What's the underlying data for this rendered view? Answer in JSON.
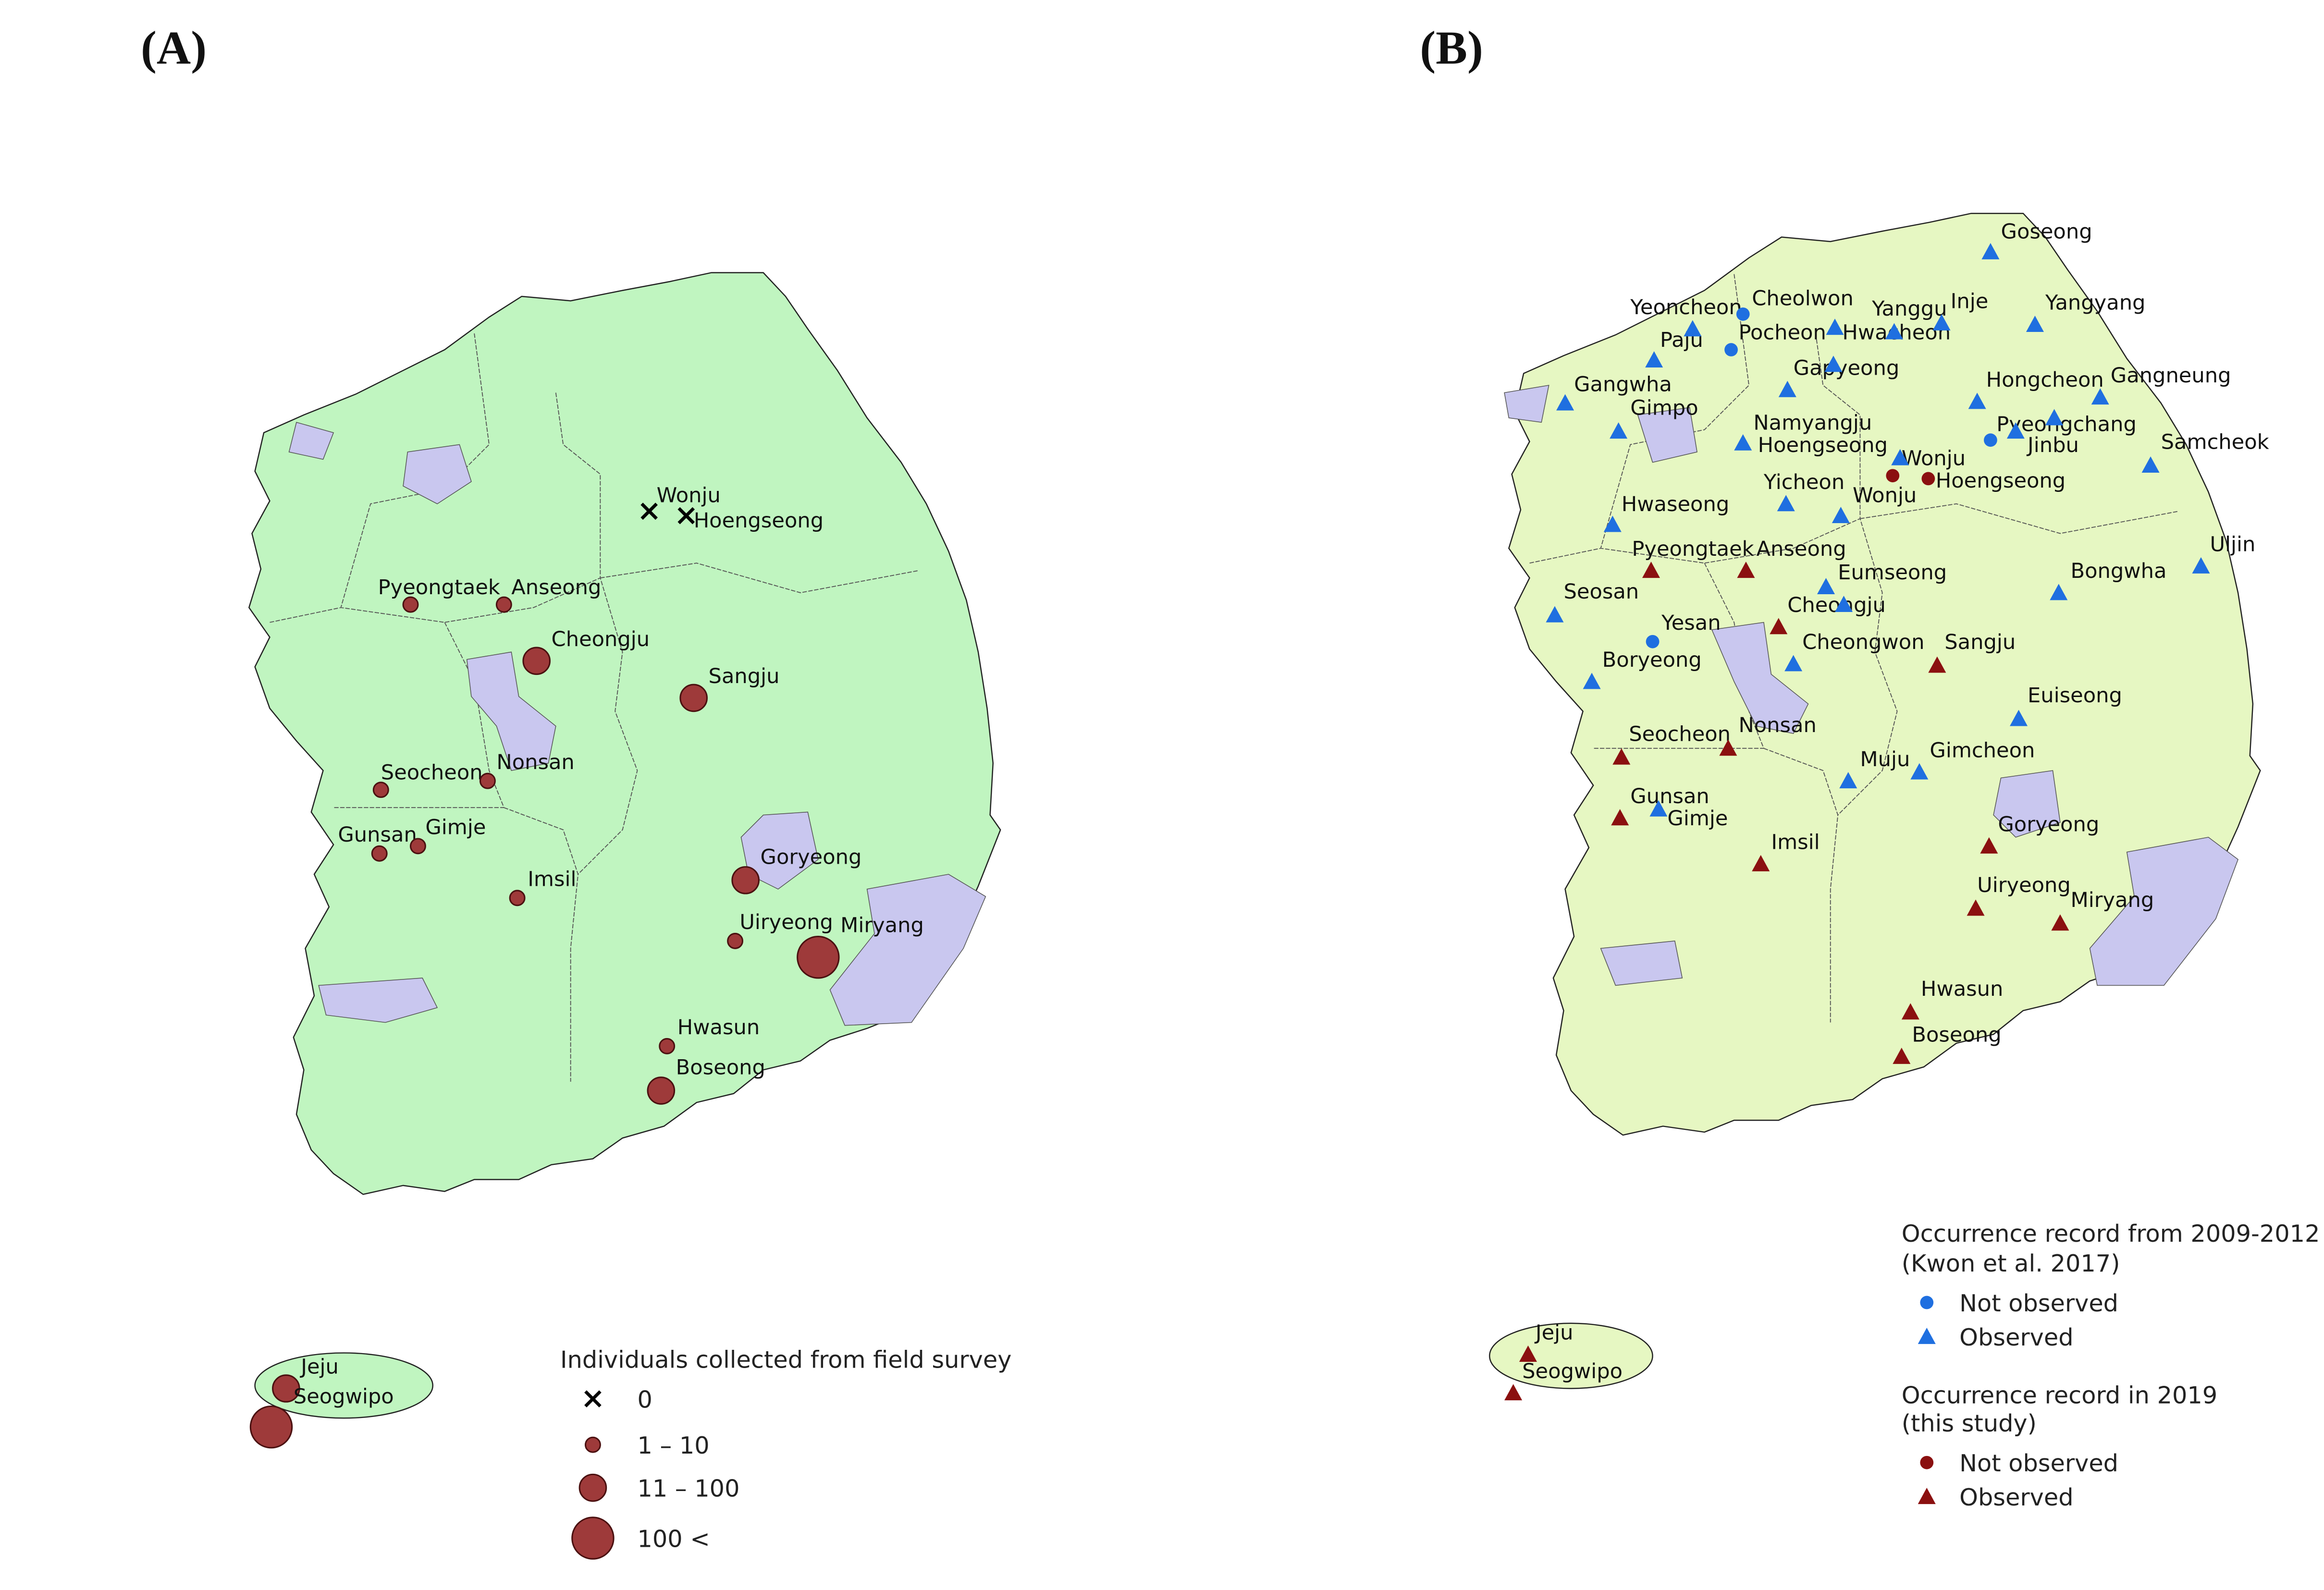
{
  "panel_a": {
    "label": "(A)",
    "legend": {
      "title": "Individuals collected from field survey",
      "groups": [
        {
          "label": "0",
          "sites": [
            "Wonju",
            "Hoengseong"
          ]
        },
        {
          "label": "1 – 10",
          "sites": [
            "Pyeongtaek",
            "Anseong",
            "Seocheon",
            "Nonsan",
            "Gunsan",
            "Gimje",
            "Imsil",
            "Uiryeong",
            "Hwasun"
          ]
        },
        {
          "label": "11 – 100",
          "sites": [
            "Cheongju",
            "Sangju",
            "Goryeong",
            "Boseong",
            "Jeju"
          ]
        },
        {
          "label": "100 <",
          "sites": [
            "Miryang",
            "Seogwipo"
          ]
        }
      ]
    }
  },
  "panel_b": {
    "label": "(B)",
    "place_names": [
      "Goseong",
      "Yeoncheon",
      "Cheolwon",
      "Yanggu",
      "Inje",
      "Yangyang",
      "Paju",
      "Pocheon",
      "Hwacheon",
      "Gapyeong",
      "Gangwha",
      "Hongcheon",
      "Gangneung",
      "Gimpo",
      "Namyangju",
      "Pyeongchang",
      "Jinbu",
      "Samcheok",
      "Hoengseong",
      "Wonju",
      "Hoengseong",
      "Yicheon",
      "Wonju",
      "Hwaseong",
      "Uljin",
      "Pyeongtaek",
      "Anseong",
      "Eumseong",
      "Bongwha",
      "Seosan",
      "Cheongju",
      "Yesan",
      "Cheongwon",
      "Sangju",
      "Boryeong",
      "Euiseong",
      "Seocheon",
      "Nonsan",
      "Gimcheon",
      "Muju",
      "Gunsan",
      "Gimje",
      "Goryeong",
      "Imsil",
      "Uiryeong",
      "Miryang",
      "Hwasun",
      "Boseong",
      "Jeju",
      "Seogwipo"
    ],
    "legend": {
      "groups": [
        {
          "title": [
            "Occurrence record from 2009-2012",
            "(Kwon et al. 2017)"
          ],
          "items": [
            "Not observed",
            "Observed"
          ]
        },
        {
          "title": [
            "Occurrence record in 2019",
            " (this study)"
          ],
          "items": [
            "Not observed",
            "Observed"
          ]
        }
      ]
    }
  }
}
